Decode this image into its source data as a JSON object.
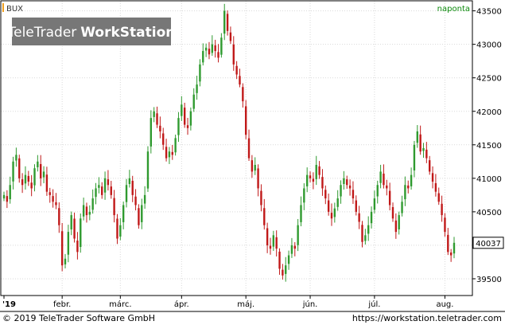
{
  "header": {
    "symbol": "BUX",
    "frequency": "naponta"
  },
  "watermark": {
    "brand": "TeleTrader",
    "product": "WorkStation"
  },
  "footer": {
    "copyright": "© 2019 TeleTrader Software GmbH",
    "url": "https://workstation.teletrader.com"
  },
  "colors": {
    "up": "#2f9a2f",
    "down": "#c01818",
    "grid": "#d9d9d9",
    "frame": "#000000",
    "symbol_marker": "#f0a020",
    "frequency_text": "#0b8a0b",
    "watermark_bg": "#777777",
    "last_label_bg": "#ffffff"
  },
  "chart_data": {
    "type": "candlestick",
    "title": "BUX",
    "ylim": [
      39250,
      43650
    ],
    "yticks": [
      39500,
      40000,
      40500,
      41000,
      41500,
      42000,
      42500,
      43000,
      43500
    ],
    "ytick_labels": [
      "39500",
      "40000",
      "40500",
      "41000",
      "41500",
      "42000",
      "42500",
      "43000",
      "43500"
    ],
    "xticks": [
      {
        "label": "'19",
        "index": 0,
        "bold": true
      },
      {
        "label": "febr.",
        "index": 19
      },
      {
        "label": "márc.",
        "index": 38
      },
      {
        "label": "ápr.",
        "index": 58
      },
      {
        "label": "máj.",
        "index": 79
      },
      {
        "label": "jún.",
        "index": 100
      },
      {
        "label": "júl.",
        "index": 121
      },
      {
        "label": "aug.",
        "index": 144
      }
    ],
    "last_value_label": "40037",
    "closes": [
      40750,
      40650,
      40900,
      41250,
      41350,
      41000,
      40900,
      41050,
      40950,
      40850,
      41150,
      41250,
      41000,
      41100,
      40800,
      40750,
      40650,
      40600,
      40300,
      39700,
      39800,
      40200,
      40450,
      40100,
      39900,
      40400,
      40600,
      40450,
      40500,
      40700,
      40850,
      40900,
      40750,
      41000,
      40900,
      40750,
      40450,
      40100,
      40300,
      40600,
      40900,
      41000,
      40750,
      40600,
      40300,
      40600,
      40750,
      41400,
      41900,
      42000,
      41800,
      41700,
      41500,
      41300,
      41400,
      41350,
      41600,
      41900,
      42100,
      41800,
      41750,
      42000,
      42250,
      42400,
      42700,
      42900,
      42950,
      42850,
      43000,
      42900,
      42800,
      43100,
      43500,
      43200,
      43050,
      42700,
      42550,
      42400,
      42150,
      41650,
      41300,
      41100,
      41200,
      40850,
      40600,
      40300,
      40000,
      39950,
      40150,
      39950,
      39650,
      39550,
      39700,
      39850,
      40000,
      39950,
      40300,
      40600,
      40850,
      41050,
      41000,
      40950,
      41200,
      41050,
      40850,
      40700,
      40500,
      40400,
      40550,
      40700,
      40900,
      41000,
      40900,
      40850,
      40700,
      40500,
      40350,
      40050,
      40150,
      40300,
      40500,
      40700,
      40900,
      41100,
      40900,
      40850,
      40600,
      40400,
      40200,
      40450,
      40650,
      40900,
      40850,
      41050,
      41500,
      41700,
      41400,
      41450,
      41300,
      41100,
      40950,
      40800,
      40650,
      40450,
      40200,
      39900,
      39850,
      40037
    ]
  }
}
